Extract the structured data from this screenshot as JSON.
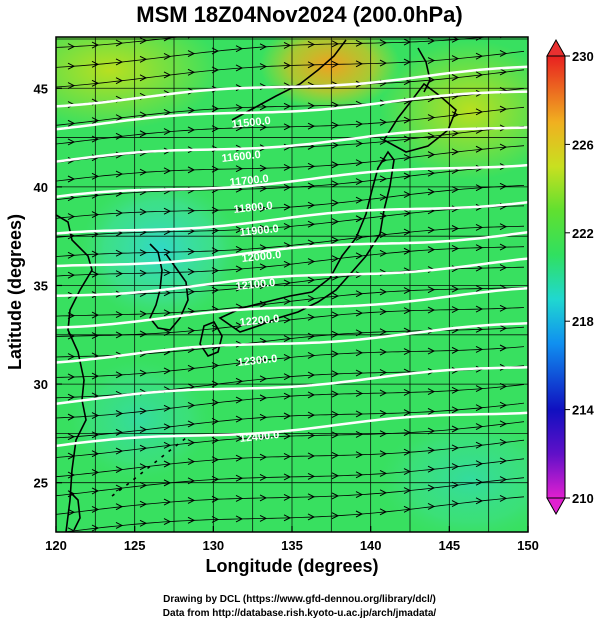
{
  "title": "MSM 18Z04Nov2024 (200.0hPa)",
  "xaxis": {
    "label": "Longitude (degrees)",
    "min": 120,
    "max": 150,
    "ticks": [
      "120",
      "125",
      "130",
      "135",
      "140",
      "145",
      "150"
    ]
  },
  "yaxis": {
    "label": "Latitude  (degrees)",
    "min": 22.5,
    "max": 47.6,
    "ticks": [
      "25",
      "30",
      "35",
      "40",
      "45"
    ]
  },
  "colorbar": {
    "min": 210,
    "max": 230,
    "ticks": [
      "210",
      "214",
      "218",
      "222",
      "226",
      "230"
    ]
  },
  "contour_labels": [
    "11500.0",
    "11600.0",
    "11700.0",
    "11800.0",
    "11900.0",
    "12000.0",
    "12100.0",
    "12200.0",
    "12300.0",
    "12400.0"
  ],
  "credits": {
    "line1": "Drawing by DCL (https://www.gfd-dennou.org/library/dcl/)",
    "line2": "Data from http://database.rish.kyoto-u.ac.jp/arch/jmadata/"
  },
  "colors": {
    "background": "#ffffff",
    "coast": "#000000",
    "contour": "#ffffff",
    "streamline": "#000000"
  }
}
